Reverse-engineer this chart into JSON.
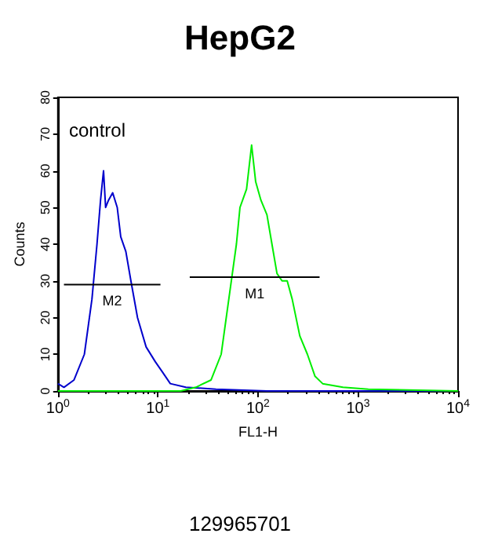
{
  "chart_data": {
    "type": "line",
    "title": "HepG2",
    "xlabel": "FL1-H",
    "ylabel": "Counts",
    "annotations": [
      "control",
      "129965701"
    ],
    "log": "x",
    "grid": false,
    "legend": false,
    "marker": "none",
    "line_style": "solid",
    "xlim": [
      1,
      10000
    ],
    "xticks": [
      {
        "value": 1,
        "label": "10$^{0}$"
      },
      {
        "value": 10,
        "label": "10$^{1}$"
      },
      {
        "value": 100,
        "label": "10$^{2}$"
      },
      {
        "value": 1000,
        "label": "10$^{3}$"
      },
      {
        "value": 10000,
        "label": "10$^{4}$"
      }
    ],
    "ylim": [
      0,
      80
    ],
    "yticks": [
      0,
      10,
      20,
      30,
      40,
      50,
      60,
      70,
      80
    ],
    "series": [
      {
        "color": "#0000cc",
        "x": [
          1.0,
          1.15,
          1.45,
          1.84,
          2.19,
          2.46,
          2.67,
          2.86,
          3.0,
          3.21,
          3.53,
          3.92,
          4.25,
          4.78,
          5.37,
          6.25,
          7.62,
          9.4,
          11.2,
          13.3,
          19,
          38,
          123,
          10000
        ],
        "values": [
          2,
          1,
          3,
          10,
          25,
          40,
          52,
          60,
          50,
          52,
          54,
          50,
          42,
          38,
          30,
          20,
          12,
          8,
          5,
          2,
          1,
          0.5,
          0,
          0
        ]
      },
      {
        "color": "#00ee00",
        "x": [
          1,
          16.9,
          23.9,
          34,
          42.9,
          51.1,
          60.9,
          66.1,
          76.9,
          86.4,
          94.9,
          107,
          123,
          138,
          155,
          174,
          196,
          220,
          262,
          312,
          372,
          443,
          707,
          1267,
          10000
        ],
        "values": [
          0,
          0,
          1,
          3,
          10,
          25,
          40,
          50,
          55,
          67,
          57,
          52,
          48,
          40,
          32,
          30,
          30,
          25,
          15,
          10,
          4,
          2,
          1,
          0.5,
          0
        ]
      },
      {
        "name": "M2",
        "color": "#000000",
        "x": [
          1.15,
          10.6
        ],
        "values": [
          29,
          29
        ]
      },
      {
        "name": "M1",
        "color": "#000000",
        "x": [
          20.8,
          413
        ],
        "values": [
          31,
          31
        ]
      }
    ]
  }
}
